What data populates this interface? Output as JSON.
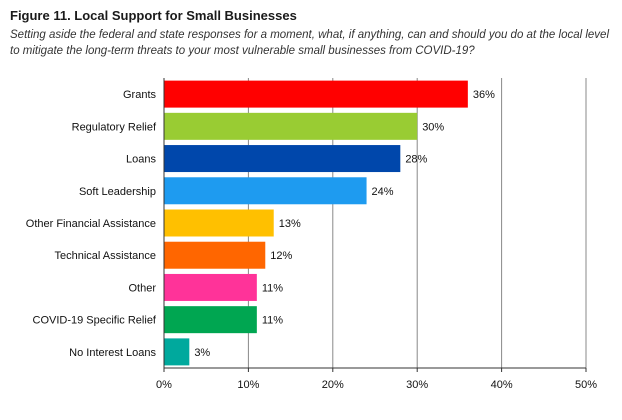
{
  "title": "Figure 11. Local Support for Small Businesses",
  "subtitle": "Setting aside the federal and state responses for a moment, what, if anything, can and should you do at the local level to mitigate the long-term threats to your most vulnerable small businesses from COVID-19?",
  "chart_data": {
    "type": "bar",
    "orientation": "horizontal",
    "title": "Figure 11. Local Support for Small Businesses",
    "subtitle": "Setting aside the federal and state responses for a moment, what, if anything, can and should you do at the local level to mitigate the long-term threats to your most vulnerable small businesses from COVID-19?",
    "xlabel": "",
    "ylabel": "",
    "categories": [
      "Grants",
      "Regulatory Relief",
      "Loans",
      "Soft Leadership",
      "Other Financial Assistance",
      "Technical Assistance",
      "Other",
      "COVID-19 Specific Relief",
      "No Interest Loans"
    ],
    "values": [
      36,
      30,
      28,
      24,
      13,
      12,
      11,
      11,
      3
    ],
    "value_labels": [
      "36%",
      "30%",
      "28%",
      "24%",
      "13%",
      "12%",
      "11%",
      "11%",
      "3%"
    ],
    "colors": [
      "#ff0000",
      "#99cc33",
      "#0047ab",
      "#1e9bf0",
      "#ffc000",
      "#ff6600",
      "#ff3399",
      "#00a651",
      "#00a99d"
    ],
    "xlim": [
      0,
      50
    ],
    "xticks": [
      0,
      10,
      20,
      30,
      40,
      50
    ],
    "xtick_labels": [
      "0%",
      "10%",
      "20%",
      "30%",
      "40%",
      "50%"
    ],
    "grid": true,
    "legend": "none"
  }
}
